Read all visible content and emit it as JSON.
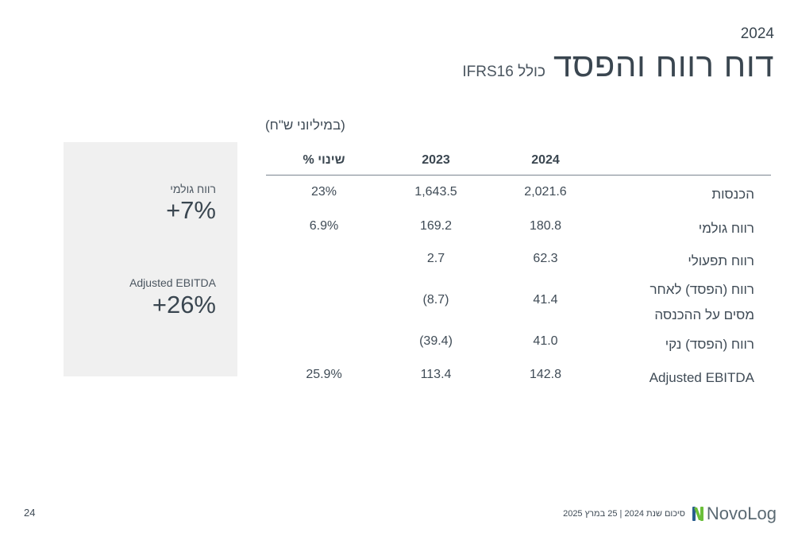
{
  "header": {
    "year": "2024",
    "title": "דוח רווח והפסד",
    "subtitle": "כולל IFRS16"
  },
  "units_label": "(במיליוני ש\"ח)",
  "side_panel": {
    "kpis": [
      {
        "label": "רווח גולמי",
        "value": "+7%"
      },
      {
        "label": "Adjusted EBITDA",
        "value": "+26%"
      }
    ]
  },
  "table": {
    "columns": [
      "2024",
      "2023",
      "שינוי %"
    ],
    "rows": [
      {
        "label": "הכנסות",
        "v2024": "2,021.6",
        "v2023": "1,643.5",
        "change": "23%"
      },
      {
        "label": "רווח גולמי",
        "v2024": "180.8",
        "v2023": "169.2",
        "change": "6.9%"
      },
      {
        "label": "רווח תפעולי",
        "v2024": "62.3",
        "v2023": "2.7",
        "change": ""
      },
      {
        "label": "רווח (הפסד) לאחר מסים על ההכנסה",
        "v2024": "41.4",
        "v2023": "(8.7)",
        "change": ""
      },
      {
        "label": "רווח (הפסד) נקי",
        "v2024": "41.0",
        "v2023": "(39.4)",
        "change": ""
      },
      {
        "label": "Adjusted EBITDA",
        "v2024": "142.8",
        "v2023": "113.4",
        "change": "25.9%"
      }
    ]
  },
  "footer": {
    "page_number": "24",
    "logo_text": "NovoLog",
    "caption": "סיכום  שנת 2024 | 25 במרץ 2025"
  },
  "colors": {
    "panel_bg": "#f0f0f0",
    "text_dark": "#3a4650",
    "logo_green": "#6bbf3a",
    "logo_blue": "#2a5d8f"
  }
}
